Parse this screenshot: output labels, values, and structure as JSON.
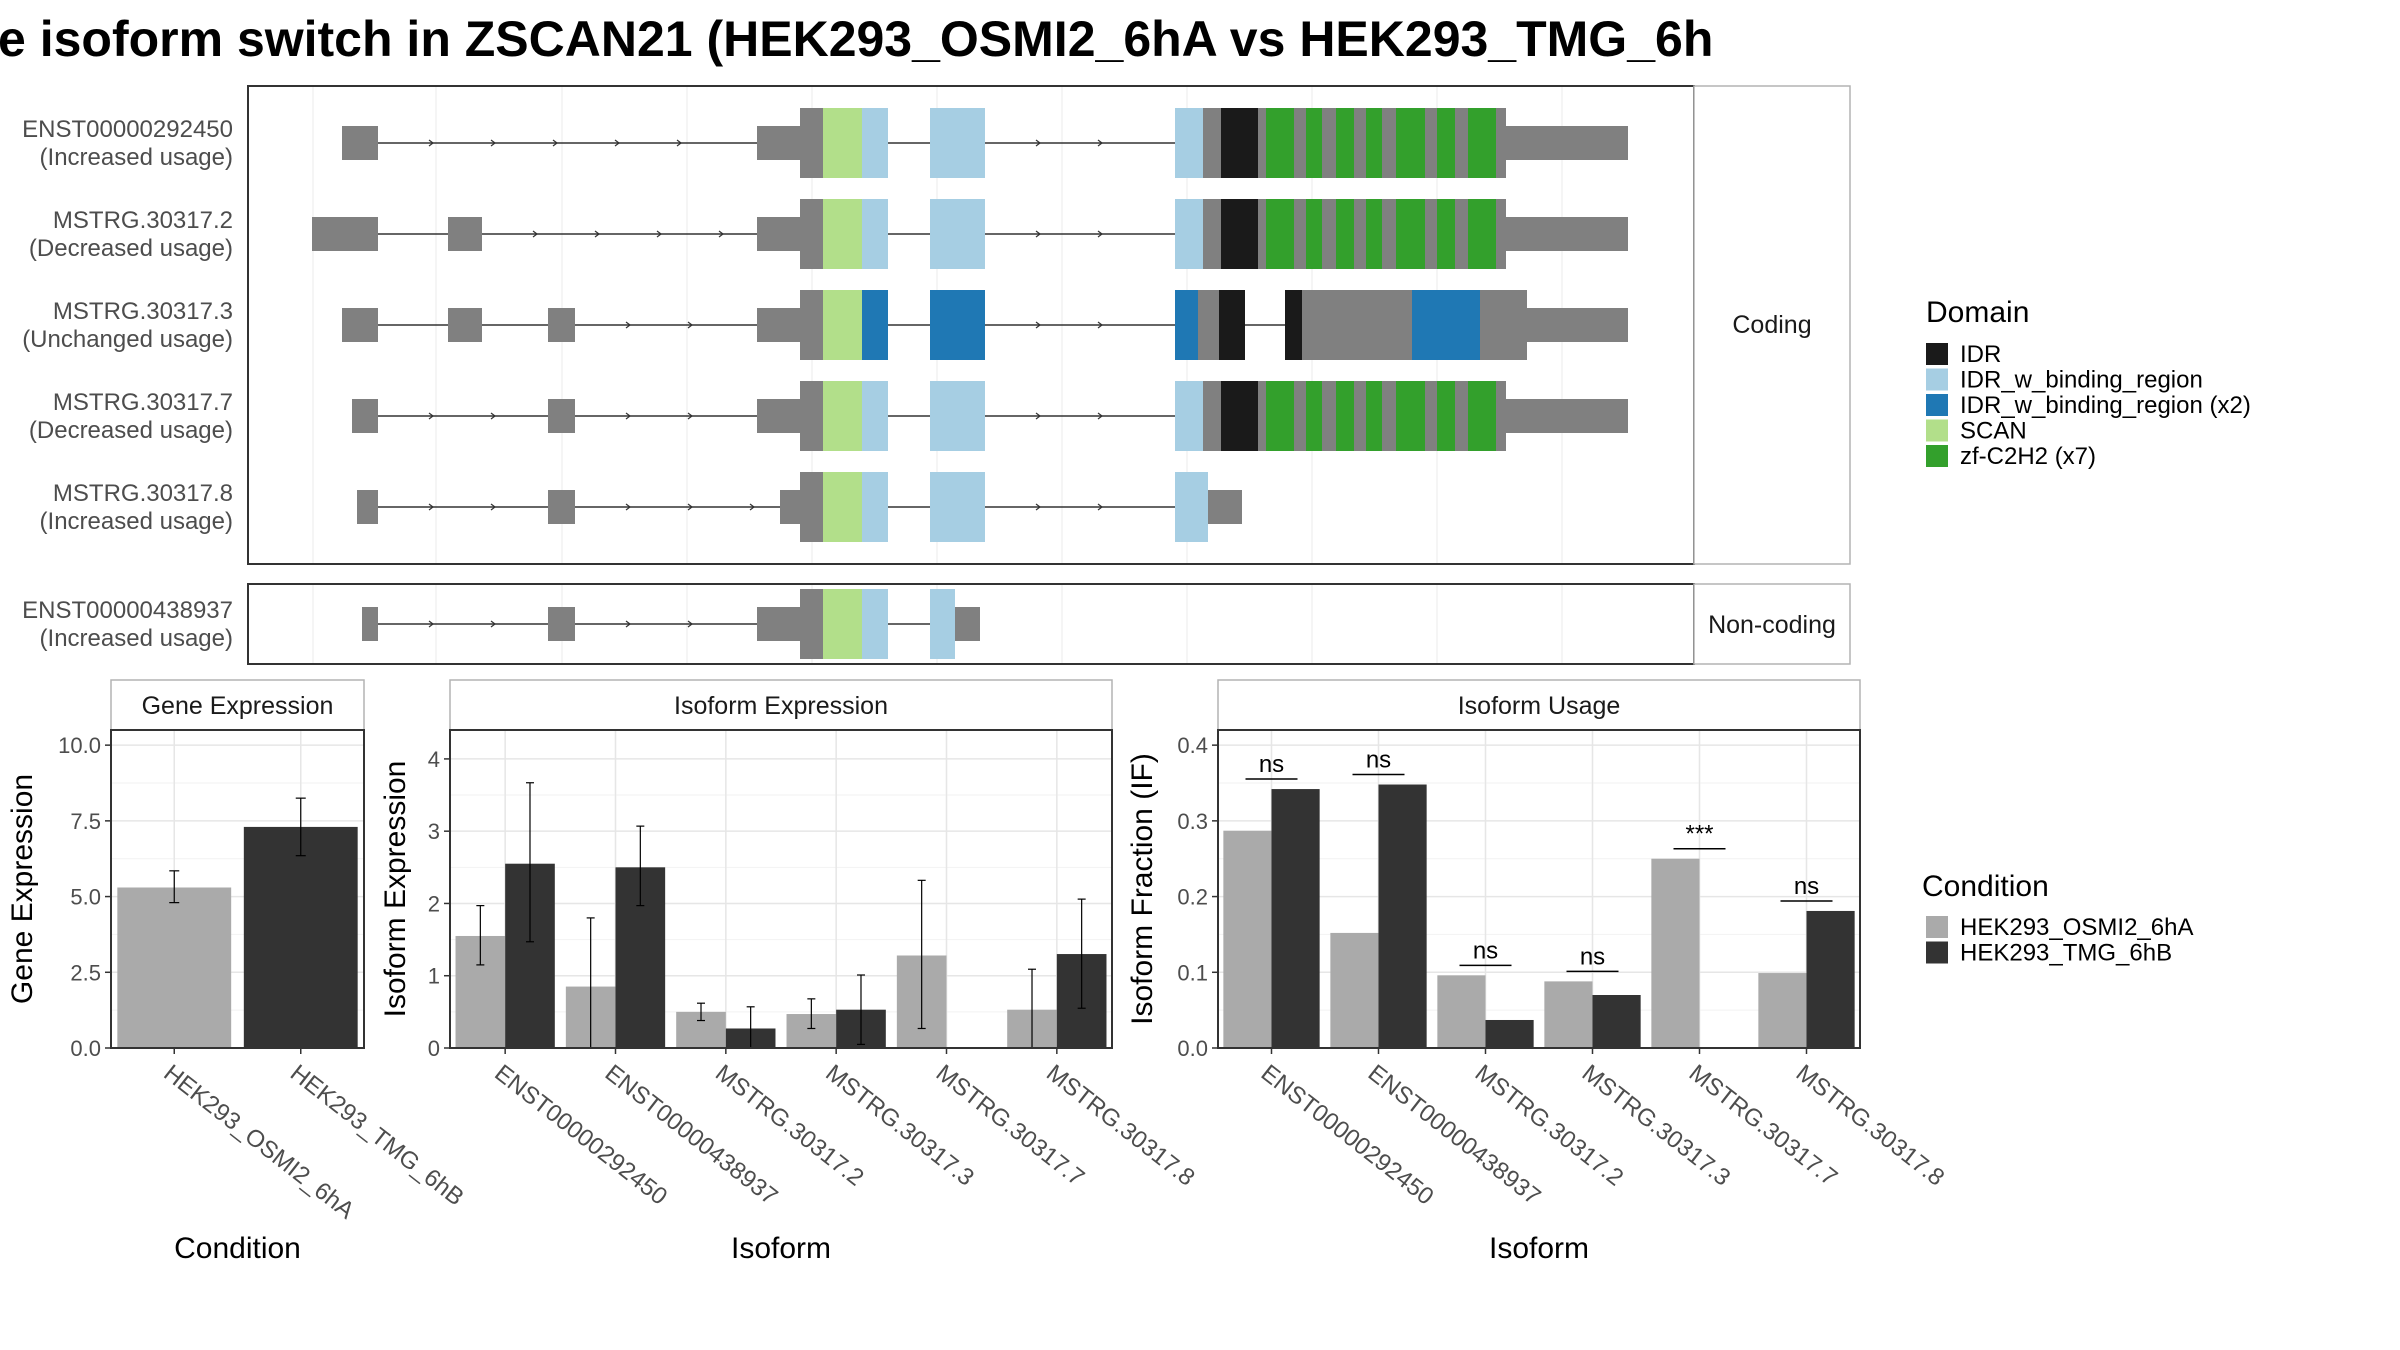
{
  "title": "e isoform switch in ZSCAN21 (HEK293_OSMI2_6hA vs HEK293_TMG_6h",
  "structure": {
    "coding_label": "Coding",
    "noncoding_label": "Non-coding",
    "coding_isoforms": [
      {
        "id": "ENST00000292450",
        "usage": "(Increased usage)"
      },
      {
        "id": "MSTRG.30317.2",
        "usage": "(Decreased usage)"
      },
      {
        "id": "MSTRG.30317.3",
        "usage": "(Unchanged usage)"
      },
      {
        "id": "MSTRG.30317.7",
        "usage": "(Decreased usage)"
      },
      {
        "id": "MSTRG.30317.8",
        "usage": "(Increased usage)"
      }
    ],
    "noncoding_isoforms": [
      {
        "id": "ENST00000438937",
        "usage": "(Increased usage)"
      }
    ]
  },
  "domain_legend": {
    "title": "Domain",
    "items": [
      {
        "label": "IDR",
        "color": "#1a1a1a"
      },
      {
        "label": "IDR_w_binding_region",
        "color": "#a6cee3"
      },
      {
        "label": "IDR_w_binding_region (x2)",
        "color": "#1f78b4"
      },
      {
        "label": "SCAN",
        "color": "#b2df8a"
      },
      {
        "label": "zf-C2H2 (x7)",
        "color": "#33a02c"
      }
    ]
  },
  "condition_legend": {
    "title": "Condition",
    "items": [
      {
        "label": "HEK293_OSMI2_6hA",
        "color": "#aaaaaa"
      },
      {
        "label": "HEK293_TMG_6hB",
        "color": "#333333"
      }
    ]
  },
  "chart_data": [
    {
      "type": "bar",
      "panel_title": "Gene Expression",
      "xlabel": "Condition",
      "ylabel": "Gene Expression",
      "ylim": [
        0,
        10.5
      ],
      "yticks": [
        "0.0",
        "2.5",
        "5.0",
        "7.5",
        "10.0"
      ],
      "categories": [
        "HEK293_OSMI2_6hA",
        "HEK293_TMG_6hB"
      ],
      "values": [
        5.3,
        7.3
      ],
      "errors": [
        [
          4.8,
          5.85
        ],
        [
          6.35,
          8.25
        ]
      ]
    },
    {
      "type": "bar",
      "panel_title": "Isoform Expression",
      "xlabel": "Isoform",
      "ylabel": "Isoform Expression",
      "ylim": [
        0,
        4.4
      ],
      "yticks": [
        "0",
        "1",
        "2",
        "3",
        "4"
      ],
      "categories": [
        "ENST00000292450",
        "ENST00000438937",
        "MSTRG.30317.2",
        "MSTRG.30317.3",
        "MSTRG.30317.7",
        "MSTRG.30317.8"
      ],
      "series": [
        {
          "name": "HEK293_OSMI2_6hA",
          "values": [
            1.55,
            0.85,
            0.5,
            0.47,
            1.28,
            0.53
          ],
          "errors": [
            [
              1.15,
              1.97
            ],
            [
              0.0,
              1.8
            ],
            [
              0.38,
              0.62
            ],
            [
              0.27,
              0.68
            ],
            [
              0.27,
              2.32
            ],
            [
              0.0,
              1.09
            ]
          ]
        },
        {
          "name": "HEK293_TMG_6hB",
          "values": [
            2.55,
            2.5,
            0.27,
            0.53,
            0.0,
            1.3
          ],
          "errors": [
            [
              1.47,
              3.67
            ],
            [
              1.97,
              3.07
            ],
            [
              0.0,
              0.57
            ],
            [
              0.05,
              1.01
            ],
            [
              0.0,
              0.0
            ],
            [
              0.55,
              2.06
            ]
          ]
        }
      ]
    },
    {
      "type": "bar",
      "panel_title": "Isoform Usage",
      "xlabel": "Isoform",
      "ylabel": "Isoform Fraction (IF)",
      "ylim": [
        0,
        0.42
      ],
      "yticks": [
        "0.0",
        "0.1",
        "0.2",
        "0.3",
        "0.4"
      ],
      "categories": [
        "ENST00000292450",
        "ENST00000438937",
        "MSTRG.30317.2",
        "MSTRG.30317.3",
        "MSTRG.30317.7",
        "MSTRG.30317.8"
      ],
      "series": [
        {
          "name": "HEK293_OSMI2_6hA",
          "values": [
            0.287,
            0.152,
            0.096,
            0.088,
            0.25,
            0.099
          ]
        },
        {
          "name": "HEK293_TMG_6hB",
          "values": [
            0.342,
            0.348,
            0.037,
            0.07,
            0.0,
            0.181
          ]
        }
      ],
      "significance": [
        "ns",
        "ns",
        "ns",
        "ns",
        "***",
        "ns"
      ]
    }
  ]
}
